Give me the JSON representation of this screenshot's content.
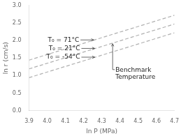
{
  "chart_data": {
    "type": "line",
    "xlabel": "ln P (MPa)",
    "ylabel": "ln r (cm/s)",
    "x": [
      3.9,
      4.7
    ],
    "series": [
      {
        "color": "#b0b0b0",
        "line_style": "dashed",
        "values": [
          1.44,
          2.72
        ]
      },
      {
        "color": "#b0b0b0",
        "line_style": "dashed",
        "values": [
          1.19,
          2.47
        ]
      },
      {
        "color": "#b0b0b0",
        "line_style": "dashed",
        "values": [
          0.94,
          2.22
        ]
      }
    ],
    "xlim": [
      3.9,
      4.7
    ],
    "ylim": [
      0.0,
      3.0
    ],
    "xticks": [
      3.9,
      {
        "value": 4.0,
        "label": "4.0"
      },
      4.1,
      4.2,
      4.3,
      4.4,
      4.5,
      4.6,
      4.7
    ],
    "yticks": [
      {
        "value": 0.0,
        "label": "0.0"
      },
      0.5,
      {
        "value": 1.0,
        "label": "1.0"
      },
      1.5,
      {
        "value": 2.0,
        "label": "2.0"
      },
      2.5,
      {
        "value": 3.0,
        "label": "3.0"
      }
    ],
    "grid": false,
    "annotations": [
      {
        "text": "T₀ = 71°C",
        "x": 4.26,
        "y": 2.016
      },
      {
        "text": "T₀ = 21°C",
        "x": 4.265,
        "y": 1.774
      },
      {
        "text": "T₀ = -54°C",
        "x": 4.265,
        "y": 1.524
      },
      {
        "text": "Benchmark\nTemperature",
        "x": 4.36,
        "y": 1.926
      }
    ]
  }
}
